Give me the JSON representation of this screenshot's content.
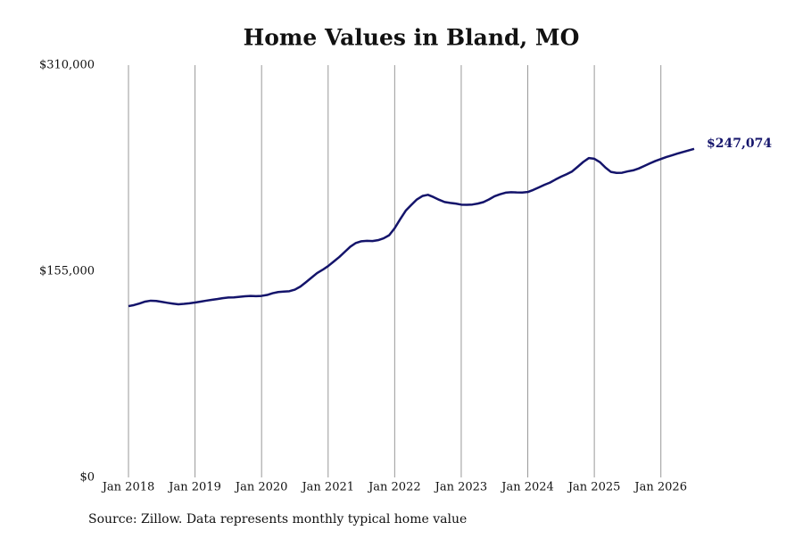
{
  "chart_data": {
    "type": "line",
    "title": "Home Values in Bland, MO",
    "source": "Source: Zillow. Data represents monthly typical home value",
    "x": [
      "2018-01",
      "2018-02",
      "2018-03",
      "2018-04",
      "2018-05",
      "2018-06",
      "2018-07",
      "2018-08",
      "2018-09",
      "2018-10",
      "2018-11",
      "2018-12",
      "2019-01",
      "2019-02",
      "2019-03",
      "2019-04",
      "2019-05",
      "2019-06",
      "2019-07",
      "2019-08",
      "2019-09",
      "2019-10",
      "2019-11",
      "2019-12",
      "2020-01",
      "2020-02",
      "2020-03",
      "2020-04",
      "2020-05",
      "2020-06",
      "2020-07",
      "2020-08",
      "2020-09",
      "2020-10",
      "2020-11",
      "2020-12",
      "2021-01",
      "2021-02",
      "2021-03",
      "2021-04",
      "2021-05",
      "2021-06",
      "2021-07",
      "2021-08",
      "2021-09",
      "2021-10",
      "2021-11",
      "2021-12",
      "2022-01",
      "2022-02",
      "2022-03",
      "2022-04",
      "2022-05",
      "2022-06",
      "2022-07",
      "2022-08",
      "2022-09",
      "2022-10",
      "2022-11",
      "2022-12",
      "2023-01",
      "2023-02",
      "2023-03",
      "2023-04",
      "2023-05",
      "2023-06",
      "2023-07",
      "2023-08",
      "2023-09",
      "2023-10",
      "2023-11",
      "2023-12",
      "2024-01",
      "2024-02",
      "2024-03",
      "2024-04",
      "2024-05",
      "2024-06",
      "2024-07",
      "2024-08",
      "2024-09",
      "2024-10",
      "2024-11",
      "2024-12",
      "2025-01",
      "2025-02",
      "2025-03",
      "2025-04",
      "2025-05",
      "2025-06",
      "2025-07",
      "2025-08",
      "2025-09",
      "2025-10",
      "2025-11",
      "2025-12",
      "2026-01",
      "2026-02",
      "2026-03",
      "2026-04",
      "2026-05",
      "2026-06",
      "2026-07"
    ],
    "values": [
      128800,
      129600,
      130800,
      132200,
      132900,
      132700,
      132000,
      131300,
      130700,
      130200,
      130500,
      130900,
      131500,
      132200,
      132900,
      133500,
      134100,
      134800,
      135300,
      135400,
      135800,
      136200,
      136500,
      136300,
      136500,
      137200,
      138500,
      139400,
      139700,
      140000,
      141200,
      143500,
      146800,
      150200,
      153600,
      156100,
      158900,
      162300,
      165700,
      169600,
      173500,
      176300,
      177600,
      177900,
      177700,
      178400,
      179800,
      182100,
      187400,
      194200,
      200600,
      204900,
      209000,
      211600,
      212500,
      210800,
      208800,
      207100,
      206400,
      205900,
      205100,
      205000,
      205200,
      205900,
      207000,
      209000,
      211400,
      212900,
      214100,
      214500,
      214300,
      214200,
      214600,
      216200,
      218100,
      220000,
      221700,
      224000,
      226100,
      228000,
      230100,
      233600,
      237200,
      240100,
      239600,
      237100,
      233000,
      229700,
      229000,
      229100,
      230100,
      230900,
      232300,
      234200,
      236100,
      237900,
      239400,
      240900,
      242200,
      243500,
      244700,
      245900,
      247074
    ],
    "value_labels": [
      null,
      null,
      null,
      null,
      null,
      null,
      null,
      null,
      null,
      null,
      null,
      null,
      null,
      null,
      null,
      null,
      null,
      null,
      null,
      null,
      null,
      null,
      null,
      null,
      null,
      null,
      null,
      null,
      null,
      null,
      null,
      null,
      null,
      null,
      null,
      null,
      null,
      null,
      null,
      null,
      null,
      null,
      null,
      null,
      null,
      null,
      null,
      null,
      null,
      null,
      null,
      null,
      null,
      null,
      null,
      null,
      null,
      null,
      null,
      null,
      null,
      null,
      null,
      null,
      null,
      null,
      null,
      null,
      null,
      null,
      null,
      null,
      null,
      null,
      null,
      null,
      null,
      null,
      null,
      null,
      null,
      null,
      null,
      null,
      null,
      null,
      null,
      null,
      null,
      null,
      null,
      null,
      null,
      null,
      null,
      null,
      null,
      null,
      null,
      null,
      null,
      null,
      "$247,074"
    ],
    "color": "#14146b",
    "xlim": [
      "2018-01",
      "2026-07"
    ],
    "xticks": [
      {
        "value": "2018-01",
        "label": "Jan 2018"
      },
      {
        "value": "2019-01",
        "label": "Jan 2019"
      },
      {
        "value": "2020-01",
        "label": "Jan 2020"
      },
      {
        "value": "2021-01",
        "label": "Jan 2021"
      },
      {
        "value": "2022-01",
        "label": "Jan 2022"
      },
      {
        "value": "2023-01",
        "label": "Jan 2023"
      },
      {
        "value": "2024-01",
        "label": "Jan 2024"
      },
      {
        "value": "2025-01",
        "label": "Jan 2025"
      },
      {
        "value": "2026-01",
        "label": "Jan 2026"
      }
    ],
    "ylim": [
      0,
      310000
    ],
    "yticks": [
      {
        "value": 0,
        "label": "$0"
      },
      {
        "value": 155000,
        "label": "$155,000"
      },
      {
        "value": 310000,
        "label": "$310,000"
      }
    ],
    "grid": "x"
  }
}
